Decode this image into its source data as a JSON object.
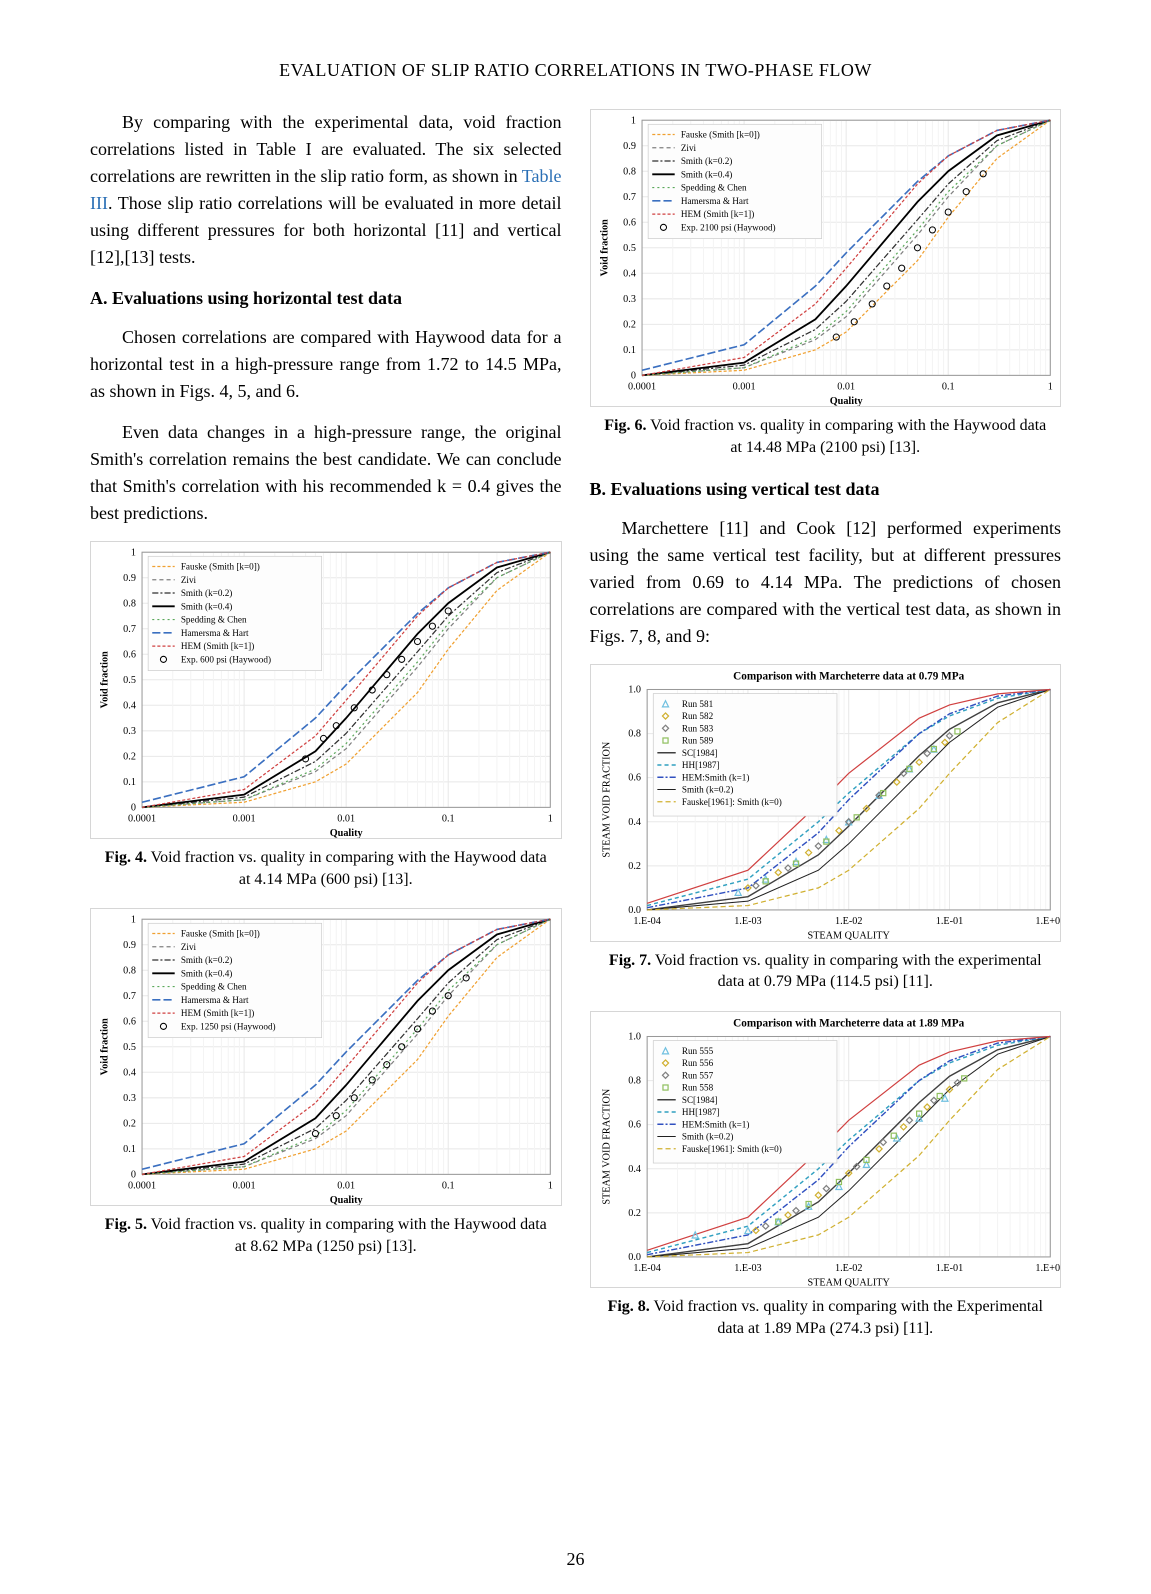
{
  "header": "EVALUATION OF SLIP RATIO CORRELATIONS IN TWO-PHASE FLOW",
  "pageNumber": "26",
  "leftCol": {
    "para1_a": "By comparing with the experimental data, void fraction correlations listed in Table I are evaluated. The six selected correlations are rewritten in the slip ratio form, as shown in ",
    "tableLink": "Table III",
    "para1_b": ". Those slip ratio correlations will be evaluated in more detail using different pressures for both horizontal [11] and vertical [12],[13] tests.",
    "headA": "A. Evaluations using horizontal test data",
    "para2": "Chosen correlations are compared with Haywood data for a horizontal test in a high-pressure range from 1.72 to 14.5 MPa, as shown in Figs. 4, 5, and 6.",
    "para3": "Even data changes in a high-pressure range, the original Smith's correlation remains the best candidate. We can conclude that Smith's correlation with his recommended k = 0.4 gives the best predictions."
  },
  "rightCol": {
    "headB": "B. Evaluations using vertical test data",
    "para1": "Marchettere [11] and Cook [12] performed experiments using the same vertical test facility, but at different pressures varied from 0.69 to 4.14 MPa. The predictions of chosen correlations are compared with the vertical test data, as shown in Figs. 7, 8, and 9:"
  },
  "fig4": {
    "caption_bold": "Fig. 4.",
    "caption": " Void fraction vs. quality in comparing with the Haywood data at 4.14 MPa (600 psi) [13]."
  },
  "fig5": {
    "caption_bold": "Fig. 5.",
    "caption": " Void fraction vs. quality in comparing with the Haywood data at 8.62 MPa (1250 psi) [13]."
  },
  "fig6": {
    "caption_bold": "Fig. 6.",
    "caption": " Void fraction vs. quality in comparing with the Haywood data at 14.48 MPa (2100 psi) [13]."
  },
  "fig7": {
    "caption_bold": "Fig. 7.",
    "caption": " Void fraction vs. quality in comparing with the experimental data at 0.79 MPa (114.5 psi) [11]."
  },
  "fig8": {
    "caption_bold": "Fig. 8.",
    "caption": " Void fraction vs. quality in comparing with the Experimental data at 1.89 MPa (274.3 psi) [11]."
  },
  "haywoodChart": {
    "type": "line",
    "xlabel": "Quality",
    "ylabel": "Void fraction",
    "xscale": "log",
    "xlim": [
      0.0001,
      1
    ],
    "ylim": [
      0,
      1
    ],
    "xticks": [
      "0.0001",
      "0.001",
      "0.01",
      "0.1",
      "1"
    ],
    "yticks": [
      "0",
      "0.1",
      "0.2",
      "0.3",
      "0.4",
      "0.5",
      "0.6",
      "0.7",
      "0.8",
      "0.9",
      "1"
    ],
    "background": "#ffffff",
    "grid_color": "#e8e8e8",
    "legend": [
      {
        "label": "Fauske (Smith [k=0])",
        "color": "#f0a030",
        "dash": "3,2",
        "width": 1.2
      },
      {
        "label": "Zivi",
        "color": "#808080",
        "dash": "4,3",
        "width": 1.2
      },
      {
        "label": "Smith (k=0.2)",
        "color": "#303030",
        "dash": "6,2,2,2",
        "width": 1.2
      },
      {
        "label": "Smith (k=0.4)",
        "color": "#000000",
        "dash": "",
        "width": 1.8
      },
      {
        "label": "Spedding & Chen",
        "color": "#5aa85a",
        "dash": "2,3",
        "width": 1.2
      },
      {
        "label": "Hamersma & Hart",
        "color": "#3a6fc0",
        "dash": "8,3",
        "width": 1.6
      },
      {
        "label": "HEM (Smith [k=1])",
        "color": "#d04040",
        "dash": "3,2",
        "width": 1.2
      }
    ],
    "expLabel600": "Exp. 600 psi (Haywood)",
    "expLabel1250": "Exp. 1250 psi (Haywood)",
    "expLabel2100": "Exp. 2100 psi (Haywood)",
    "expMarker": {
      "shape": "circle",
      "size": 3,
      "stroke": "#000000",
      "fill": "none"
    },
    "curves": {
      "fauske": [
        [
          0.0001,
          0.0
        ],
        [
          0.001,
          0.02
        ],
        [
          0.005,
          0.1
        ],
        [
          0.01,
          0.17
        ],
        [
          0.05,
          0.45
        ],
        [
          0.1,
          0.62
        ],
        [
          0.3,
          0.85
        ],
        [
          1,
          1.0
        ]
      ],
      "zivi": [
        [
          0.0001,
          0.0
        ],
        [
          0.001,
          0.03
        ],
        [
          0.005,
          0.14
        ],
        [
          0.01,
          0.23
        ],
        [
          0.05,
          0.55
        ],
        [
          0.1,
          0.7
        ],
        [
          0.3,
          0.9
        ],
        [
          1,
          1.0
        ]
      ],
      "smith02": [
        [
          0.0001,
          0.0
        ],
        [
          0.001,
          0.04
        ],
        [
          0.005,
          0.18
        ],
        [
          0.01,
          0.29
        ],
        [
          0.05,
          0.61
        ],
        [
          0.1,
          0.75
        ],
        [
          0.3,
          0.92
        ],
        [
          1,
          1.0
        ]
      ],
      "smith04": [
        [
          0.0001,
          0.0
        ],
        [
          0.001,
          0.05
        ],
        [
          0.005,
          0.22
        ],
        [
          0.01,
          0.35
        ],
        [
          0.05,
          0.68
        ],
        [
          0.1,
          0.8
        ],
        [
          0.3,
          0.94
        ],
        [
          1,
          1.0
        ]
      ],
      "spedding": [
        [
          0.0001,
          0.0
        ],
        [
          0.001,
          0.03
        ],
        [
          0.005,
          0.15
        ],
        [
          0.01,
          0.25
        ],
        [
          0.05,
          0.57
        ],
        [
          0.1,
          0.72
        ],
        [
          0.3,
          0.9
        ],
        [
          1,
          1.0
        ]
      ],
      "hamersma": [
        [
          0.0001,
          0.02
        ],
        [
          0.001,
          0.12
        ],
        [
          0.005,
          0.35
        ],
        [
          0.01,
          0.48
        ],
        [
          0.05,
          0.76
        ],
        [
          0.1,
          0.86
        ],
        [
          0.3,
          0.96
        ],
        [
          1,
          1.0
        ]
      ],
      "hem": [
        [
          0.0001,
          0.0
        ],
        [
          0.001,
          0.07
        ],
        [
          0.005,
          0.28
        ],
        [
          0.01,
          0.42
        ],
        [
          0.05,
          0.75
        ],
        [
          0.1,
          0.86
        ],
        [
          0.3,
          0.96
        ],
        [
          1,
          1.0
        ]
      ]
    },
    "exp600": [
      [
        0.004,
        0.19
      ],
      [
        0.006,
        0.27
      ],
      [
        0.008,
        0.32
      ],
      [
        0.012,
        0.39
      ],
      [
        0.018,
        0.46
      ],
      [
        0.025,
        0.52
      ],
      [
        0.035,
        0.58
      ],
      [
        0.05,
        0.65
      ],
      [
        0.07,
        0.71
      ],
      [
        0.1,
        0.77
      ]
    ],
    "exp1250": [
      [
        0.005,
        0.16
      ],
      [
        0.008,
        0.23
      ],
      [
        0.012,
        0.3
      ],
      [
        0.018,
        0.37
      ],
      [
        0.025,
        0.43
      ],
      [
        0.035,
        0.5
      ],
      [
        0.05,
        0.57
      ],
      [
        0.07,
        0.64
      ],
      [
        0.1,
        0.7
      ],
      [
        0.15,
        0.77
      ]
    ],
    "exp2100": [
      [
        0.008,
        0.15
      ],
      [
        0.012,
        0.21
      ],
      [
        0.018,
        0.28
      ],
      [
        0.025,
        0.35
      ],
      [
        0.035,
        0.42
      ],
      [
        0.05,
        0.5
      ],
      [
        0.07,
        0.57
      ],
      [
        0.1,
        0.64
      ],
      [
        0.15,
        0.72
      ],
      [
        0.22,
        0.79
      ]
    ]
  },
  "marchChart": {
    "type": "line",
    "xlabel": "STEAM QUALITY",
    "ylabel": "STEAM VOID FRACTION",
    "xscale": "log",
    "xlim": [
      0.0001,
      1
    ],
    "ylim": [
      0,
      1
    ],
    "xticks": [
      "1.E-04",
      "1.E-03",
      "1.E-02",
      "1.E-01",
      "1.E+00"
    ],
    "yticks": [
      "0.0",
      "0.2",
      "0.4",
      "0.6",
      "0.8",
      "1.0"
    ],
    "background": "#ffffff",
    "grid_color": "#e8e8e8",
    "title7": "Comparison with Marcheterre data at 0.79 MPa",
    "title8": "Comparison with Marcheterre data at 1.89 MPa",
    "legendCurves": [
      {
        "label": "SC[1984]",
        "color": "#404040",
        "dash": "",
        "width": 1.4
      },
      {
        "label": "HH[1987]",
        "color": "#30a0c0",
        "dash": "4,3",
        "width": 1.4
      },
      {
        "label": "HEM:Smith (k=1)",
        "color": "#3050c0",
        "dash": "6,2,2,2",
        "width": 1.4
      },
      {
        "label": "Smith (k=0.2)",
        "color": "#202020",
        "dash": "",
        "width": 1.0
      },
      {
        "label": "Fauske[1961]: Smith (k=0)",
        "color": "#d0b030",
        "dash": "5,3",
        "width": 1.2
      }
    ],
    "hemRed": {
      "color": "#d04040",
      "dash": "",
      "width": 1.2
    },
    "legendRunsA": [
      {
        "label": "Run 581",
        "color": "#70c0e0",
        "shape": "triangle"
      },
      {
        "label": "Run 582",
        "color": "#d0b030",
        "shape": "diamond"
      },
      {
        "label": "Run 583",
        "color": "#808080",
        "shape": "diamond"
      },
      {
        "label": "Run 589",
        "color": "#90c060",
        "shape": "square"
      }
    ],
    "legendRunsB": [
      {
        "label": "Run 555",
        "color": "#70c0e0",
        "shape": "triangle"
      },
      {
        "label": "Run 556",
        "color": "#d0b030",
        "shape": "diamond"
      },
      {
        "label": "Run 557",
        "color": "#808080",
        "shape": "diamond"
      },
      {
        "label": "Run 558",
        "color": "#90c060",
        "shape": "square"
      }
    ],
    "curves": {
      "sc": [
        [
          0.0001,
          0.0
        ],
        [
          0.001,
          0.06
        ],
        [
          0.005,
          0.25
        ],
        [
          0.01,
          0.38
        ],
        [
          0.05,
          0.7
        ],
        [
          0.1,
          0.82
        ],
        [
          0.3,
          0.94
        ],
        [
          1,
          1.0
        ]
      ],
      "hh": [
        [
          0.0001,
          0.02
        ],
        [
          0.001,
          0.14
        ],
        [
          0.005,
          0.4
        ],
        [
          0.01,
          0.53
        ],
        [
          0.05,
          0.8
        ],
        [
          0.1,
          0.88
        ],
        [
          0.3,
          0.96
        ],
        [
          1,
          1.0
        ]
      ],
      "hem": [
        [
          0.0001,
          0.01
        ],
        [
          0.001,
          0.1
        ],
        [
          0.005,
          0.35
        ],
        [
          0.01,
          0.5
        ],
        [
          0.05,
          0.8
        ],
        [
          0.1,
          0.89
        ],
        [
          0.3,
          0.97
        ],
        [
          1,
          1.0
        ]
      ],
      "smith02": [
        [
          0.0001,
          0.0
        ],
        [
          0.001,
          0.04
        ],
        [
          0.005,
          0.18
        ],
        [
          0.01,
          0.3
        ],
        [
          0.05,
          0.62
        ],
        [
          0.1,
          0.76
        ],
        [
          0.3,
          0.92
        ],
        [
          1,
          1.0
        ]
      ],
      "fauske": [
        [
          0.0001,
          0.0
        ],
        [
          0.001,
          0.02
        ],
        [
          0.005,
          0.1
        ],
        [
          0.01,
          0.18
        ],
        [
          0.05,
          0.46
        ],
        [
          0.1,
          0.62
        ],
        [
          0.3,
          0.85
        ],
        [
          1,
          1.0
        ]
      ],
      "hemTop": [
        [
          0.0001,
          0.03
        ],
        [
          0.001,
          0.18
        ],
        [
          0.005,
          0.48
        ],
        [
          0.01,
          0.62
        ],
        [
          0.05,
          0.87
        ],
        [
          0.1,
          0.93
        ],
        [
          0.3,
          0.98
        ],
        [
          1,
          1.0
        ]
      ]
    },
    "runsA": [
      [
        [
          0.0008,
          0.08
        ],
        [
          0.0015,
          0.14
        ],
        [
          0.003,
          0.22
        ],
        [
          0.006,
          0.32
        ],
        [
          0.01,
          0.4
        ],
        [
          0.02,
          0.52
        ],
        [
          0.04,
          0.64
        ],
        [
          0.07,
          0.73
        ]
      ],
      [
        [
          0.001,
          0.1
        ],
        [
          0.002,
          0.17
        ],
        [
          0.004,
          0.26
        ],
        [
          0.008,
          0.36
        ],
        [
          0.015,
          0.46
        ],
        [
          0.03,
          0.58
        ],
        [
          0.05,
          0.67
        ],
        [
          0.09,
          0.76
        ]
      ],
      [
        [
          0.0012,
          0.11
        ],
        [
          0.0025,
          0.19
        ],
        [
          0.005,
          0.29
        ],
        [
          0.01,
          0.4
        ],
        [
          0.02,
          0.52
        ],
        [
          0.035,
          0.62
        ],
        [
          0.06,
          0.71
        ],
        [
          0.1,
          0.79
        ]
      ],
      [
        [
          0.0015,
          0.13
        ],
        [
          0.003,
          0.21
        ],
        [
          0.006,
          0.31
        ],
        [
          0.012,
          0.42
        ],
        [
          0.022,
          0.53
        ],
        [
          0.04,
          0.64
        ],
        [
          0.07,
          0.73
        ],
        [
          0.12,
          0.81
        ]
      ]
    ],
    "runsB": [
      [
        [
          0.0003,
          0.1
        ],
        [
          0.001,
          0.12
        ],
        [
          0.002,
          0.16
        ],
        [
          0.004,
          0.23
        ],
        [
          0.008,
          0.32
        ],
        [
          0.015,
          0.42
        ],
        [
          0.03,
          0.54
        ],
        [
          0.05,
          0.63
        ],
        [
          0.09,
          0.72
        ]
      ],
      [
        [
          0.0012,
          0.12
        ],
        [
          0.0025,
          0.19
        ],
        [
          0.005,
          0.28
        ],
        [
          0.01,
          0.38
        ],
        [
          0.02,
          0.49
        ],
        [
          0.035,
          0.59
        ],
        [
          0.06,
          0.68
        ],
        [
          0.1,
          0.76
        ]
      ],
      [
        [
          0.0015,
          0.14
        ],
        [
          0.003,
          0.21
        ],
        [
          0.006,
          0.31
        ],
        [
          0.012,
          0.41
        ],
        [
          0.022,
          0.52
        ],
        [
          0.04,
          0.62
        ],
        [
          0.07,
          0.71
        ],
        [
          0.12,
          0.79
        ]
      ],
      [
        [
          0.002,
          0.16
        ],
        [
          0.004,
          0.24
        ],
        [
          0.008,
          0.34
        ],
        [
          0.015,
          0.44
        ],
        [
          0.028,
          0.55
        ],
        [
          0.05,
          0.65
        ],
        [
          0.08,
          0.73
        ],
        [
          0.14,
          0.81
        ]
      ]
    ]
  }
}
